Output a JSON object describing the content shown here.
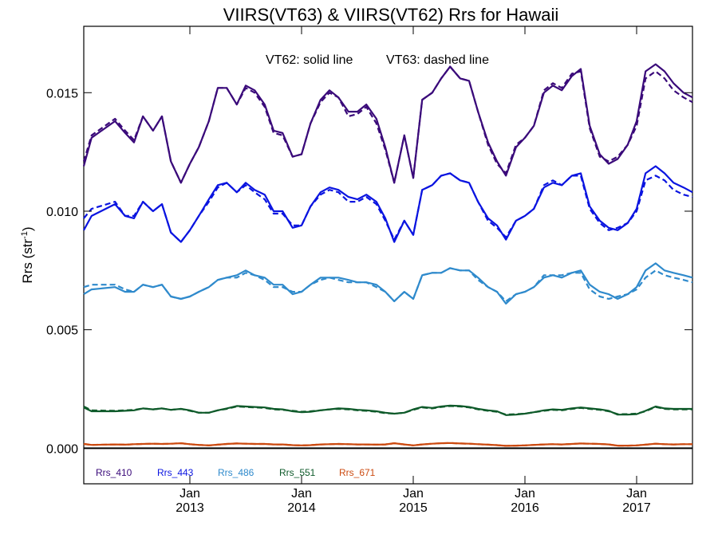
{
  "chart_data": {
    "type": "line",
    "title": "VIIRS(VT63) & VIIRS(VT62)  Rrs for Hawaii",
    "annotation_solid": "VT62: solid line",
    "annotation_dashed": "VT63: dashed line",
    "ylabel_main": "Rrs (str",
    "ylabel_sup": "-1",
    "ylabel_close": ")",
    "xlim": [
      2012.05,
      2017.5
    ],
    "ylim": [
      -0.0015,
      0.0178
    ],
    "yticks": [
      {
        "value": 0.0,
        "label": "0.000"
      },
      {
        "value": 0.005,
        "label": "0.005"
      },
      {
        "value": 0.01,
        "label": "0.010"
      },
      {
        "value": 0.015,
        "label": "0.015"
      }
    ],
    "xticks": [
      {
        "value": 2013.0,
        "month": "Jan",
        "year": "2013"
      },
      {
        "value": 2014.0,
        "month": "Jan",
        "year": "2014"
      },
      {
        "value": 2015.0,
        "month": "Jan",
        "year": "2015"
      },
      {
        "value": 2016.0,
        "month": "Jan",
        "year": "2016"
      },
      {
        "value": 2017.0,
        "month": "Jan",
        "year": "2017"
      }
    ],
    "zero_line": 0.0,
    "x": [
      2012.05,
      2012.12,
      2012.33,
      2012.42,
      2012.5,
      2012.58,
      2012.67,
      2012.75,
      2012.83,
      2012.92,
      2013.0,
      2013.08,
      2013.17,
      2013.25,
      2013.33,
      2013.42,
      2013.5,
      2013.58,
      2013.67,
      2013.75,
      2013.83,
      2013.92,
      2014.0,
      2014.08,
      2014.17,
      2014.25,
      2014.33,
      2014.42,
      2014.5,
      2014.58,
      2014.67,
      2014.75,
      2014.83,
      2014.92,
      2015.0,
      2015.08,
      2015.17,
      2015.25,
      2015.33,
      2015.42,
      2015.5,
      2015.58,
      2015.67,
      2015.75,
      2015.83,
      2015.92,
      2016.0,
      2016.08,
      2016.17,
      2016.25,
      2016.33,
      2016.42,
      2016.5,
      2016.58,
      2016.67,
      2016.75,
      2016.83,
      2016.92,
      2017.0,
      2017.08,
      2017.17,
      2017.25,
      2017.33,
      2017.42,
      2017.5
    ],
    "series": [
      {
        "name": "Rrs_410",
        "color": "#3a0a7a",
        "vt62": [
          0.0119,
          0.0131,
          0.0138,
          0.0133,
          0.0129,
          0.014,
          0.0134,
          0.014,
          0.0121,
          0.0112,
          0.012,
          0.0127,
          0.0138,
          0.0152,
          0.0152,
          0.0145,
          0.0153,
          0.0151,
          0.0145,
          0.0134,
          0.0133,
          0.0123,
          0.0124,
          0.0137,
          0.0147,
          0.0151,
          0.0148,
          0.0142,
          0.0142,
          0.0145,
          0.0139,
          0.0127,
          0.0112,
          0.0132,
          0.0114,
          0.0147,
          0.015,
          0.0156,
          0.0161,
          0.0156,
          0.0155,
          0.0142,
          0.0129,
          0.0121,
          0.0115,
          0.0127,
          0.0131,
          0.0136,
          0.015,
          0.0153,
          0.0151,
          0.0157,
          0.016,
          0.0136,
          0.0124,
          0.012,
          0.0122,
          0.0128,
          0.0138,
          0.0159,
          0.0162,
          0.0159,
          0.0154,
          0.015,
          0.0148
        ],
        "vt63": [
          0.0121,
          0.0132,
          0.0139,
          0.0134,
          0.013,
          0.014,
          0.0134,
          0.014,
          0.0121,
          0.0112,
          0.012,
          0.0127,
          0.0138,
          0.0152,
          0.0152,
          0.0145,
          0.0152,
          0.015,
          0.0144,
          0.0133,
          0.0132,
          0.0123,
          0.0124,
          0.0137,
          0.0146,
          0.015,
          0.0148,
          0.014,
          0.0141,
          0.0144,
          0.0137,
          0.0126,
          0.0112,
          0.0132,
          0.0114,
          0.0147,
          0.015,
          0.0156,
          0.0161,
          0.0156,
          0.0155,
          0.0142,
          0.0128,
          0.012,
          0.0116,
          0.0128,
          0.0131,
          0.0136,
          0.0151,
          0.0154,
          0.0152,
          0.0158,
          0.0159,
          0.0135,
          0.0123,
          0.0121,
          0.0123,
          0.0128,
          0.0136,
          0.0156,
          0.0159,
          0.0156,
          0.0151,
          0.0148,
          0.0146
        ]
      },
      {
        "name": "Rrs_443",
        "color": "#0a14e0",
        "vt62": [
          0.0092,
          0.0098,
          0.0103,
          0.0098,
          0.0097,
          0.0104,
          0.01,
          0.0103,
          0.0091,
          0.0087,
          0.0092,
          0.0098,
          0.0105,
          0.0111,
          0.0112,
          0.0108,
          0.0112,
          0.0109,
          0.0107,
          0.01,
          0.01,
          0.0093,
          0.0094,
          0.0102,
          0.0108,
          0.011,
          0.0109,
          0.0106,
          0.0105,
          0.0107,
          0.0104,
          0.0097,
          0.0087,
          0.0096,
          0.009,
          0.0109,
          0.0111,
          0.0115,
          0.0116,
          0.0113,
          0.0112,
          0.0104,
          0.0097,
          0.0094,
          0.0088,
          0.0096,
          0.0098,
          0.0101,
          0.011,
          0.0112,
          0.0111,
          0.0115,
          0.0116,
          0.0102,
          0.0096,
          0.0093,
          0.0092,
          0.0095,
          0.0101,
          0.0116,
          0.0119,
          0.0116,
          0.0112,
          0.011,
          0.0108
        ],
        "vt63": [
          0.0097,
          0.0101,
          0.0104,
          0.0098,
          0.0098,
          0.0104,
          0.01,
          0.0103,
          0.0091,
          0.0087,
          0.0092,
          0.0098,
          0.0104,
          0.011,
          0.0112,
          0.0108,
          0.0111,
          0.0108,
          0.0105,
          0.0099,
          0.0099,
          0.0094,
          0.0094,
          0.0102,
          0.0107,
          0.0109,
          0.0108,
          0.0104,
          0.0104,
          0.0106,
          0.0103,
          0.0096,
          0.0088,
          0.0096,
          0.009,
          0.0109,
          0.0111,
          0.0115,
          0.0116,
          0.0113,
          0.0112,
          0.0104,
          0.0096,
          0.0093,
          0.0089,
          0.0096,
          0.0098,
          0.0101,
          0.0111,
          0.0113,
          0.0111,
          0.0115,
          0.0115,
          0.0101,
          0.0095,
          0.0092,
          0.0093,
          0.0095,
          0.01,
          0.0113,
          0.0115,
          0.0113,
          0.0109,
          0.0107,
          0.0106
        ]
      },
      {
        "name": "Rrs_486",
        "color": "#2f8acc",
        "vt62": [
          0.0065,
          0.0067,
          0.0068,
          0.0066,
          0.0066,
          0.0069,
          0.0068,
          0.0069,
          0.0064,
          0.0063,
          0.0064,
          0.0066,
          0.0068,
          0.0071,
          0.0072,
          0.0073,
          0.0075,
          0.0073,
          0.0072,
          0.0069,
          0.0069,
          0.0065,
          0.0066,
          0.0069,
          0.0072,
          0.0072,
          0.0072,
          0.0071,
          0.007,
          0.007,
          0.0069,
          0.0066,
          0.0062,
          0.0066,
          0.0063,
          0.0073,
          0.0074,
          0.0074,
          0.0076,
          0.0075,
          0.0075,
          0.0072,
          0.0068,
          0.0066,
          0.0061,
          0.0065,
          0.0066,
          0.0068,
          0.0072,
          0.0073,
          0.0072,
          0.0074,
          0.0075,
          0.0069,
          0.0066,
          0.0065,
          0.0063,
          0.0065,
          0.0068,
          0.0075,
          0.0078,
          0.0075,
          0.0074,
          0.0073,
          0.0072
        ],
        "vt63": [
          0.0068,
          0.0069,
          0.0069,
          0.0067,
          0.0066,
          0.0069,
          0.0068,
          0.0069,
          0.0064,
          0.0063,
          0.0064,
          0.0066,
          0.0068,
          0.0071,
          0.0072,
          0.0072,
          0.0074,
          0.0073,
          0.0071,
          0.0068,
          0.0068,
          0.0066,
          0.0066,
          0.0069,
          0.0071,
          0.0072,
          0.0071,
          0.007,
          0.007,
          0.007,
          0.0068,
          0.0066,
          0.0062,
          0.0066,
          0.0063,
          0.0073,
          0.0074,
          0.0074,
          0.0076,
          0.0075,
          0.0075,
          0.0071,
          0.0068,
          0.0066,
          0.0062,
          0.0065,
          0.0066,
          0.0068,
          0.0073,
          0.0073,
          0.0073,
          0.0074,
          0.0074,
          0.0067,
          0.0064,
          0.0063,
          0.0064,
          0.0065,
          0.0067,
          0.0072,
          0.0075,
          0.0073,
          0.0072,
          0.0071,
          0.007
        ]
      },
      {
        "name": "Rrs_551",
        "color": "#0e5a2a",
        "vt62": [
          0.00172,
          0.00156,
          0.00156,
          0.00158,
          0.0016,
          0.00168,
          0.00164,
          0.00168,
          0.00162,
          0.00166,
          0.0016,
          0.0015,
          0.0015,
          0.0016,
          0.00168,
          0.00178,
          0.00176,
          0.00174,
          0.00172,
          0.00166,
          0.00164,
          0.00156,
          0.00152,
          0.00154,
          0.0016,
          0.00164,
          0.00168,
          0.00166,
          0.00162,
          0.0016,
          0.00156,
          0.0015,
          0.00146,
          0.0015,
          0.00164,
          0.00174,
          0.0017,
          0.00176,
          0.0018,
          0.00178,
          0.00174,
          0.00166,
          0.0016,
          0.00156,
          0.0014,
          0.00142,
          0.00146,
          0.00152,
          0.0016,
          0.00164,
          0.00162,
          0.00168,
          0.00172,
          0.00168,
          0.00164,
          0.00158,
          0.00142,
          0.00142,
          0.00144,
          0.00158,
          0.00176,
          0.00168,
          0.00166,
          0.00166,
          0.00166
        ],
        "vt63": [
          0.00176,
          0.0016,
          0.00158,
          0.0016,
          0.00162,
          0.00168,
          0.00164,
          0.00168,
          0.00162,
          0.00166,
          0.00158,
          0.0015,
          0.0015,
          0.0016,
          0.00166,
          0.00176,
          0.00174,
          0.00172,
          0.0017,
          0.00164,
          0.00162,
          0.00158,
          0.00154,
          0.00156,
          0.0016,
          0.00164,
          0.00166,
          0.00164,
          0.0016,
          0.00158,
          0.00154,
          0.00148,
          0.00146,
          0.0015,
          0.00162,
          0.00172,
          0.00168,
          0.00174,
          0.00178,
          0.00176,
          0.00172,
          0.00164,
          0.00158,
          0.00154,
          0.00142,
          0.00144,
          0.00146,
          0.00152,
          0.00158,
          0.00162,
          0.0016,
          0.00166,
          0.0017,
          0.00166,
          0.00162,
          0.00156,
          0.00144,
          0.00144,
          0.00146,
          0.00156,
          0.00174,
          0.00166,
          0.00164,
          0.00164,
          0.00164
        ]
      },
      {
        "name": "Rrs_671",
        "color": "#cc4a10",
        "vt62": [
          0.00018,
          0.00014,
          0.00016,
          0.00015,
          0.00017,
          0.00018,
          0.00019,
          0.00018,
          0.00019,
          0.00021,
          0.00017,
          0.00014,
          0.00012,
          0.00015,
          0.00018,
          0.0002,
          0.00019,
          0.00018,
          0.00018,
          0.00016,
          0.00016,
          0.00013,
          0.00012,
          0.00013,
          0.00016,
          0.00017,
          0.00018,
          0.00017,
          0.00016,
          0.00016,
          0.00015,
          0.00016,
          0.00021,
          0.00016,
          0.00012,
          0.00016,
          0.00019,
          0.00021,
          0.00022,
          0.0002,
          0.00019,
          0.00017,
          0.00015,
          0.00013,
          0.0001,
          0.00011,
          0.00012,
          0.00014,
          0.00016,
          0.00017,
          0.00016,
          0.00018,
          0.0002,
          0.00019,
          0.00018,
          0.00016,
          0.00011,
          0.00011,
          0.00012,
          0.00015,
          0.00019,
          0.00017,
          0.00016,
          0.00017,
          0.00017
        ],
        "vt63": [
          0.00018,
          0.00014,
          0.00016,
          0.00015,
          0.00017,
          0.00018,
          0.00019,
          0.00018,
          0.00019,
          0.00021,
          0.00017,
          0.00014,
          0.00012,
          0.00015,
          0.00018,
          0.0002,
          0.00019,
          0.00018,
          0.00018,
          0.00016,
          0.00016,
          0.00013,
          0.00012,
          0.00013,
          0.00016,
          0.00017,
          0.00018,
          0.00017,
          0.00016,
          0.00016,
          0.00015,
          0.00016,
          0.00021,
          0.00016,
          0.00012,
          0.00016,
          0.00019,
          0.00021,
          0.00022,
          0.0002,
          0.00019,
          0.00017,
          0.00015,
          0.00013,
          0.0001,
          0.00011,
          0.00012,
          0.00014,
          0.00016,
          0.00017,
          0.00016,
          0.00018,
          0.0002,
          0.00019,
          0.00018,
          0.00016,
          0.00011,
          0.00011,
          0.00012,
          0.00015,
          0.00019,
          0.00017,
          0.00016,
          0.00017,
          0.00017
        ]
      }
    ],
    "legend": {
      "placement": "bottom-left",
      "orientation": "horizontal"
    },
    "grid": false
  }
}
